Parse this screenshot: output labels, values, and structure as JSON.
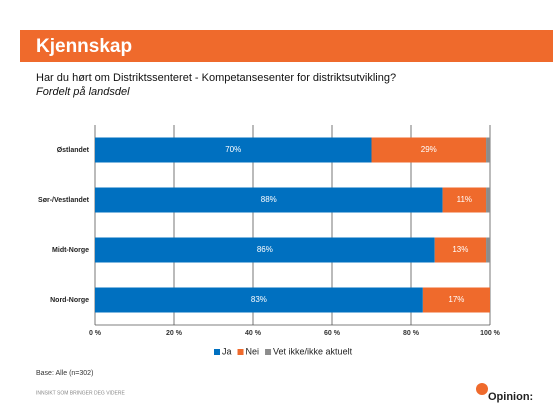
{
  "header": "Kjennskap",
  "base_note": "Base: Alle (n=302)",
  "footer": "INNSIKT SOM BRINGER DEG VIDERE",
  "logo": "Opinion:",
  "chart_data": {
    "type": "stacked_barh",
    "title": "Har du hørt om Distriktssenteret - Kompetansesenter for distriktsutvikling?",
    "subtitle": "Fordelt på landsdel",
    "categories": [
      "Østlandet",
      "Sør-/Vestlandet",
      "Midt-Norge",
      "Nord-Norge"
    ],
    "series": [
      {
        "name": "Ja",
        "color": "#0070c0",
        "values": [
          70,
          88,
          86,
          83
        ],
        "value_labels": [
          "70%",
          "88%",
          "86%",
          "83%"
        ]
      },
      {
        "name": "Nei",
        "color": "#ef6a2c",
        "values": [
          29,
          11,
          13,
          17
        ],
        "value_labels": [
          "29%",
          "11%",
          "13%",
          "17%"
        ]
      },
      {
        "name": "Vet ikke/ikke aktuelt",
        "color": "#8c8c8c",
        "values": [
          1,
          1,
          1,
          0
        ]
      }
    ],
    "xlim": [
      0,
      100
    ],
    "xticks": [
      {
        "value": 0,
        "label": "0 %"
      },
      {
        "value": 20,
        "label": "20 %"
      },
      {
        "value": 40,
        "label": "40 %"
      },
      {
        "value": 60,
        "label": "60 %"
      },
      {
        "value": 80,
        "label": "80 %"
      },
      {
        "value": 100,
        "label": "100 %"
      }
    ],
    "grid": true,
    "legend": "bottom"
  }
}
